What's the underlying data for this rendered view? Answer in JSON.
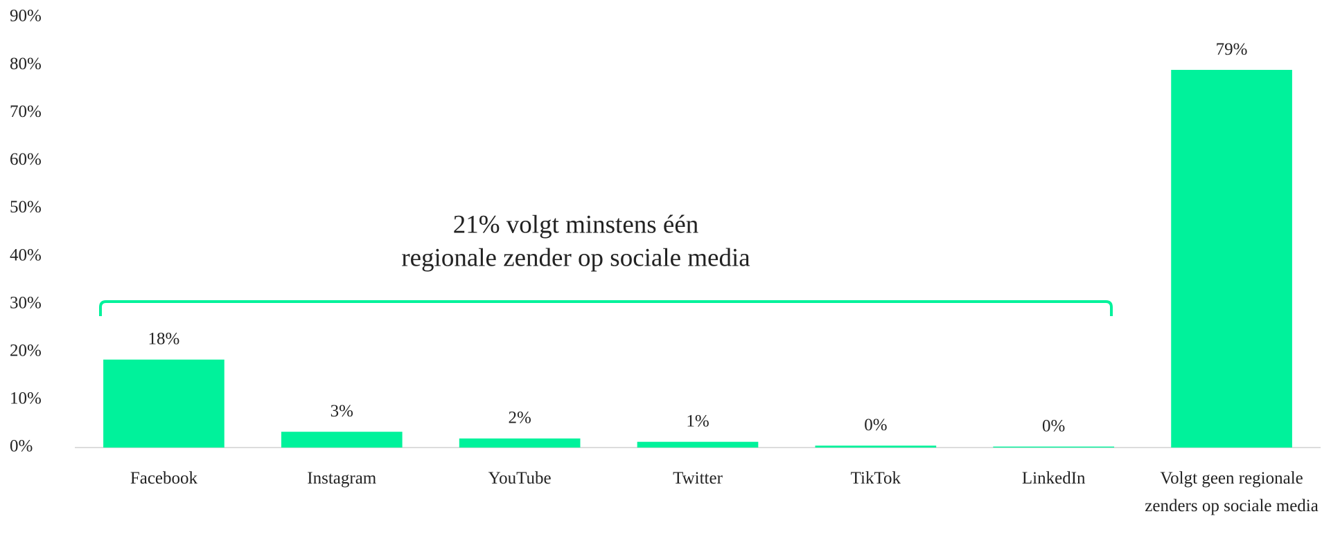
{
  "chart_data": {
    "type": "bar",
    "categories": [
      "Facebook",
      "Instagram",
      "YouTube",
      "Twitter",
      "TikTok",
      "LinkedIn",
      "Volgt geen regionale zenders op sociale media"
    ],
    "values": [
      18.4,
      3.3,
      1.9,
      1.2,
      0.4,
      0.2,
      79.0
    ],
    "value_labels": [
      "18%",
      "3%",
      "2%",
      "1%",
      "0%",
      "0%",
      "79%"
    ],
    "color": "#00f29b",
    "ylim": [
      0,
      90
    ],
    "yticks": [
      {
        "value": 0,
        "label": "0%"
      },
      {
        "value": 10,
        "label": "10%"
      },
      {
        "value": 20,
        "label": "20%"
      },
      {
        "value": 30,
        "label": "30%"
      },
      {
        "value": 40,
        "label": "40%"
      },
      {
        "value": 50,
        "label": "50%"
      },
      {
        "value": 60,
        "label": "60%"
      },
      {
        "value": 70,
        "label": "70%"
      },
      {
        "value": 80,
        "label": "80%"
      },
      {
        "value": 90,
        "label": "90%"
      }
    ],
    "annotation": [
      "21% volgt minstens één",
      "regionale zender op sociale media"
    ]
  }
}
